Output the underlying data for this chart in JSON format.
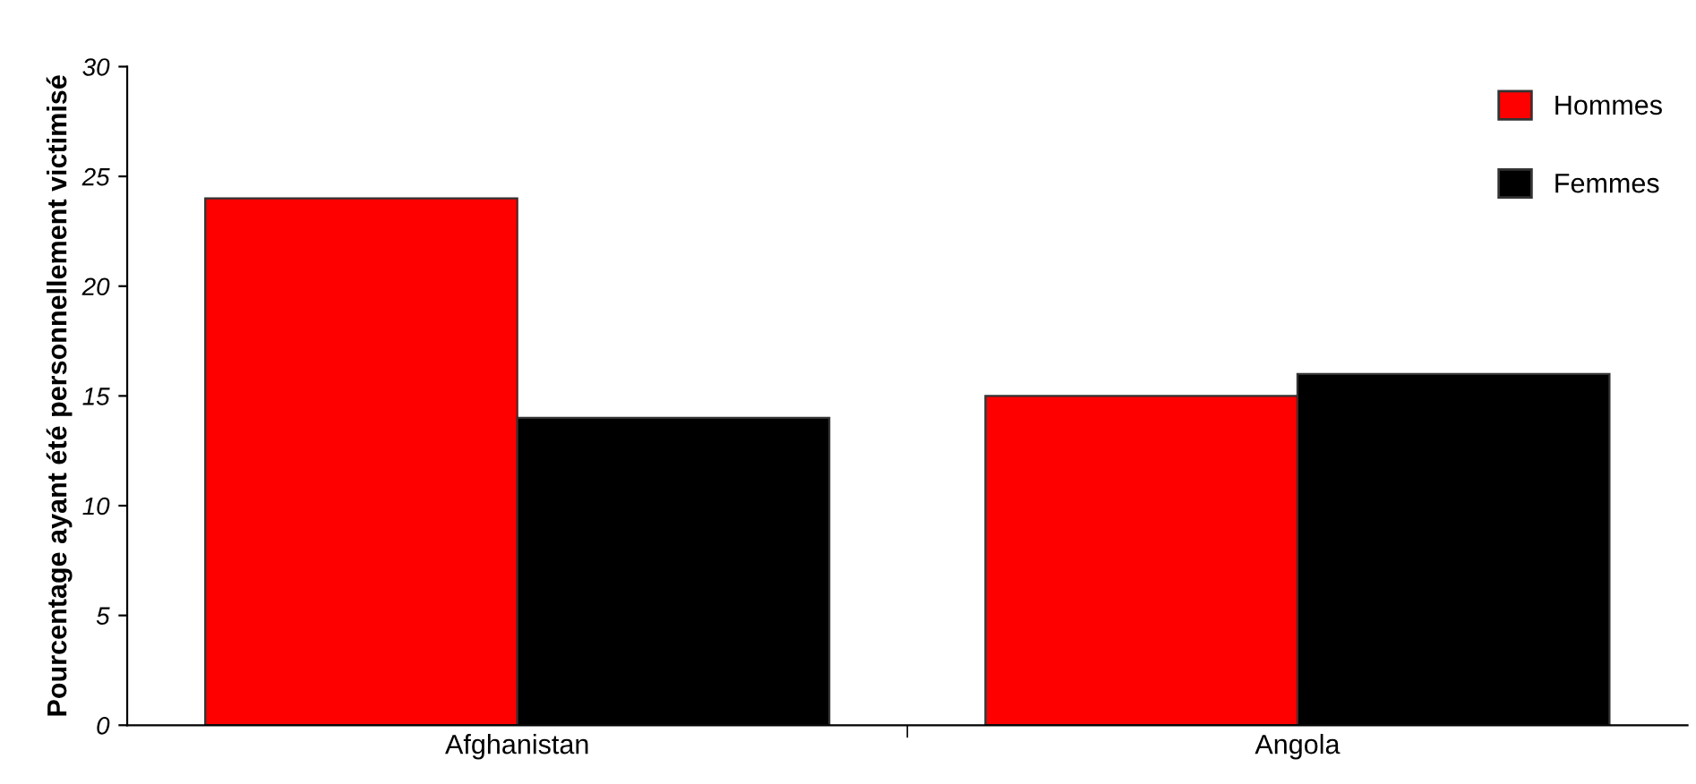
{
  "chart_data": {
    "type": "bar",
    "ylabel": "Pourcentage ayant été personnellement victimisé",
    "categories": [
      "Afghanistan",
      "Angola"
    ],
    "series": [
      {
        "name": "Hommes",
        "color": "#ff0000",
        "values": [
          24,
          15
        ]
      },
      {
        "name": "Femmes",
        "color": "#000000",
        "values": [
          14,
          16
        ]
      }
    ],
    "ylim": [
      0,
      30
    ],
    "yticks": [
      0,
      5,
      10,
      15,
      20,
      25,
      30
    ],
    "grid": false,
    "legend": "top right"
  }
}
